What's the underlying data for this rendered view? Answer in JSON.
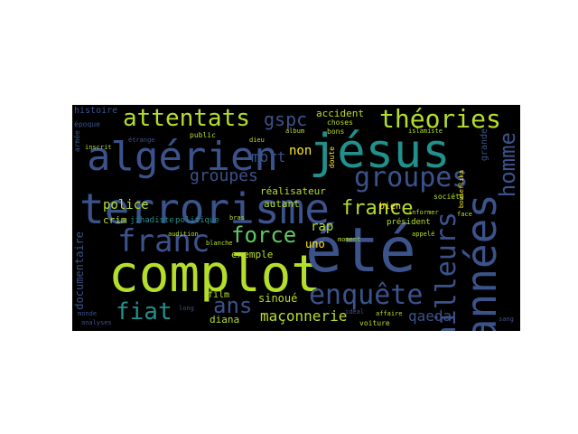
{
  "words": [
    "complot",
    "été",
    "jésus",
    "terrorisme",
    "algérien",
    "années",
    "franc",
    "enquête",
    "groupes",
    "théories",
    "attentats",
    "ailleurs",
    "homme",
    "force",
    "fiat",
    "ans",
    "france",
    "gspc",
    "groupes",
    "police",
    "mort",
    "maçonnerie",
    "qaeda",
    "non",
    "rap",
    "uno",
    "réalisateur",
    "histoire",
    "accident",
    "documentaire",
    "exemple",
    "crim",
    "jihadiste",
    "politique",
    "film",
    "diana",
    "sinoué",
    "autant",
    "bien",
    "président",
    "société",
    "voiture",
    "grande",
    "choses",
    "bons",
    "époque",
    "armée",
    "public",
    "album",
    "dieu",
    "doute",
    "informer",
    "affaire",
    "analyses",
    "monde",
    "audition",
    "bras",
    "blanche",
    "appelé",
    "moment",
    "idéal",
    "étrange",
    "inscrit",
    "long",
    "sang",
    "face",
    "islamiste",
    "bouteflika"
  ],
  "colors": {
    "background": "#000000",
    "palette": [
      "#3b528b",
      "#21918c",
      "#5ec962",
      "#b5de2b",
      "#440154",
      "#31688e",
      "#35b779",
      "#fde725",
      "#472d7b"
    ]
  }
}
